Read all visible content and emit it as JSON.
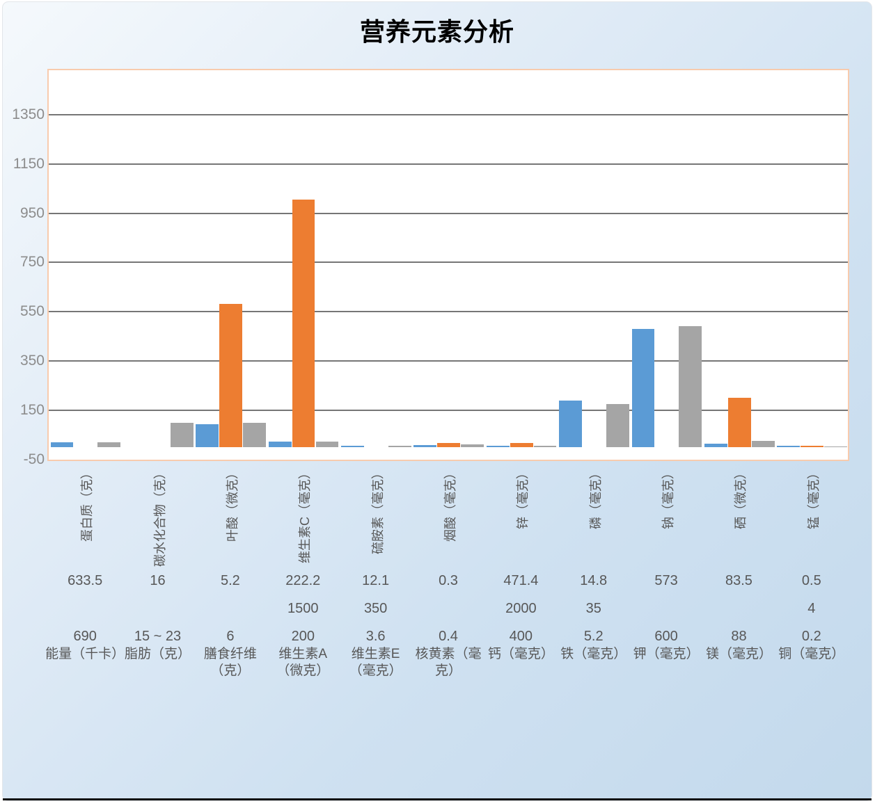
{
  "title": "营养元素分析",
  "colors": {
    "series_blue": "#5B9BD5",
    "series_orange": "#ED7D31",
    "series_gray": "#A5A5A5",
    "plot_border": "#F8CBAD",
    "plot_background": "#FFFFFF",
    "gridline": "#767676",
    "tick_label": "#8C8C8C",
    "axis_label": "#575757",
    "title_color": "#000000",
    "background_top": "#F5F9FC",
    "background_bottom": "#C3D9EC"
  },
  "chart_data": {
    "type": "bar",
    "title": "营养元素分析",
    "ylim": [
      -50,
      1530
    ],
    "y_ticks": [
      -50,
      150,
      350,
      550,
      750,
      950,
      1150,
      1350
    ],
    "grid": true,
    "legend": null,
    "categories_top_rotated": [
      "蛋白质（克）",
      "碳水化合物（克）",
      "叶酸（微克）",
      "维生素C（毫克）",
      "硫胺素（毫克）",
      "烟酸（毫克）",
      "锌（毫克）",
      "磷（毫克）",
      "钠（毫克）",
      "硒（微克）",
      "锰（毫克）"
    ],
    "value_row_1": [
      "633.5",
      "16",
      "5.2",
      "222.2",
      "12.1",
      "0.3",
      "471.4",
      "14.8",
      "573",
      "83.5",
      "0.5"
    ],
    "value_row_2": [
      "",
      "",
      "",
      "1500",
      "350",
      "",
      "2000",
      "35",
      "",
      "",
      "4"
    ],
    "value_row_3": [
      "690",
      "15 ~ 23",
      "6",
      "200",
      "3.6",
      "0.4",
      "400",
      "5.2",
      "600",
      "88",
      "0.2"
    ],
    "categories_bottom": [
      "能量（千卡）",
      "脂肪（克）",
      "膳食纤维（克）",
      "维生素A（微克）",
      "维生素E（毫克）",
      "核黄素（毫克）",
      "钙（毫克）",
      "铁（毫克）",
      "钾（毫克）",
      "镁（毫克）",
      "铜（毫克）"
    ],
    "series": [
      {
        "name": "blue",
        "color": "#5B9BD5",
        "values": [
          20,
          0,
          93,
          22,
          6,
          8,
          6,
          190,
          480,
          15,
          6
        ]
      },
      {
        "name": "orange",
        "color": "#ED7D31",
        "values": [
          0,
          0,
          580,
          1005,
          0,
          18,
          18,
          0,
          0,
          200,
          6
        ]
      },
      {
        "name": "gray",
        "color": "#A5A5A5",
        "values": [
          20,
          100,
          100,
          22,
          6,
          12,
          6,
          175,
          490,
          25,
          3
        ]
      }
    ]
  }
}
